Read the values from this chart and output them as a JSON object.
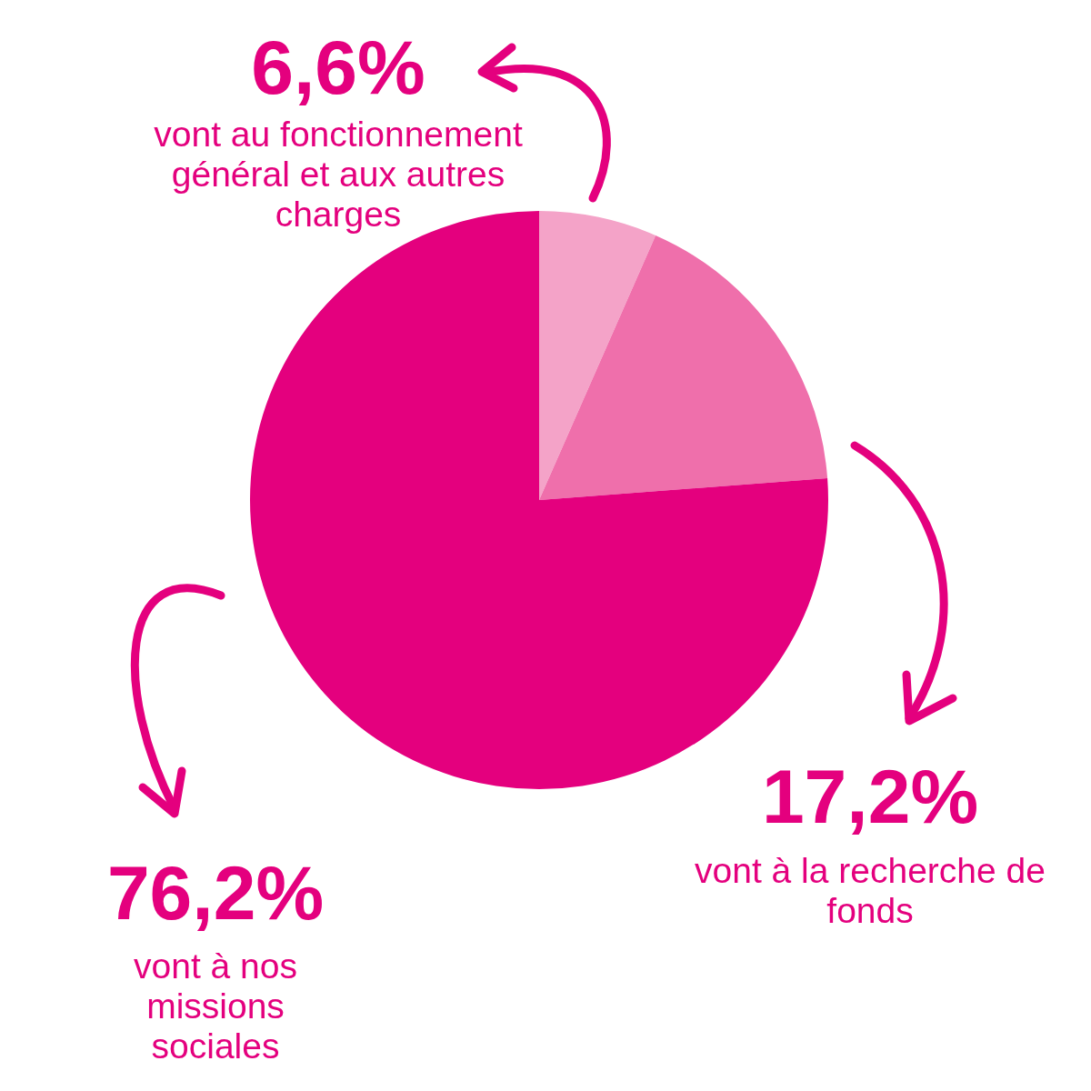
{
  "chart_data": {
    "type": "pie",
    "categories": [
      "vont au fonctionnement général et aux autres charges",
      "vont à la recherche de fonds",
      "vont à nos missions sociales"
    ],
    "values": [
      6.6,
      17.2,
      76.2
    ],
    "colors": [
      "#f4a3c8",
      "#ef6fab",
      "#e4007e"
    ],
    "value_labels": [
      "6,6%",
      "17,2%",
      "76,2%"
    ],
    "legend": false
  }
}
